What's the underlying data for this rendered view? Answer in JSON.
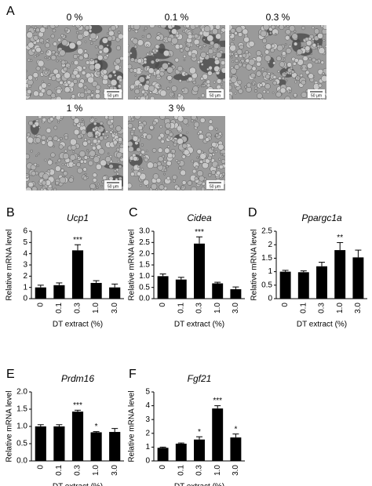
{
  "panel_a": {
    "label": "A",
    "images": [
      {
        "label": "0 %",
        "scale": "50 μm"
      },
      {
        "label": "0.1 %",
        "scale": "50 μm"
      },
      {
        "label": "0.3 %",
        "scale": "50 μm"
      },
      {
        "label": "1 %",
        "scale": "50 μm"
      },
      {
        "label": "3 %",
        "scale": "50 μm"
      }
    ]
  },
  "chart_data": [
    {
      "type": "bar",
      "panel": "B",
      "title": "Ucp1",
      "y_label": "Relative mRNA level",
      "x_label": "DT extract (%)",
      "categories": [
        "0",
        "0.1",
        "0.3",
        "1.0",
        "3.0"
      ],
      "values": [
        1.0,
        1.2,
        4.3,
        1.4,
        1.0
      ],
      "errors": [
        0.2,
        0.2,
        0.5,
        0.2,
        0.3
      ],
      "annotations": [
        null,
        null,
        "***",
        null,
        null
      ],
      "color": "#000000",
      "ylim": [
        0,
        6
      ],
      "yticks": [
        0,
        1,
        2,
        3,
        4,
        5,
        6
      ]
    },
    {
      "type": "bar",
      "panel": "C",
      "title": "Cidea",
      "y_label": "Relative mRNA level",
      "x_label": "DT extract (%)",
      "categories": [
        "0",
        "0.1",
        "0.3",
        "1.0",
        "3.0"
      ],
      "values": [
        1.0,
        0.85,
        2.45,
        0.68,
        0.42
      ],
      "errors": [
        0.1,
        0.1,
        0.3,
        0.05,
        0.1
      ],
      "annotations": [
        null,
        null,
        "***",
        null,
        null
      ],
      "color": "#000000",
      "ylim": [
        0,
        3
      ],
      "yticks": [
        {
          "value": 0,
          "label": "0.0"
        },
        0.5,
        {
          "value": 1,
          "label": "1.0"
        },
        1.5,
        {
          "value": 2,
          "label": "2.0"
        },
        2.5,
        {
          "value": 3,
          "label": "3.0"
        }
      ]
    },
    {
      "type": "bar",
      "panel": "D",
      "title": "Ppargc1a",
      "y_label": "Relative mRNA level",
      "x_label": "DT extract (%)",
      "categories": [
        "0",
        "0.1",
        "0.3",
        "1.0",
        "3.0"
      ],
      "values": [
        1.0,
        0.98,
        1.2,
        1.8,
        1.53
      ],
      "errors": [
        0.05,
        0.05,
        0.15,
        0.28,
        0.27
      ],
      "annotations": [
        null,
        null,
        null,
        "**",
        null
      ],
      "color": "#000000",
      "ylim": [
        0,
        2.5
      ],
      "yticks": [
        0,
        0.5,
        1,
        1.5,
        2,
        2.5
      ]
    },
    {
      "type": "bar",
      "panel": "E",
      "title": "Prdm16",
      "y_label": "Relative mRNA level",
      "x_label": "DT extract (%)",
      "categories": [
        "0",
        "0.1",
        "0.3",
        "1.0",
        "3.0"
      ],
      "values": [
        1.0,
        1.0,
        1.43,
        0.83,
        0.84
      ],
      "errors": [
        0.05,
        0.05,
        0.04,
        0.02,
        0.1
      ],
      "annotations": [
        null,
        null,
        "***",
        "*",
        null
      ],
      "color": "#000000",
      "ylim": [
        0,
        2
      ],
      "yticks": [
        {
          "value": 0,
          "label": "0.0"
        },
        0.5,
        {
          "value": 1,
          "label": "1.0"
        },
        1.5,
        {
          "value": 2,
          "label": "2.0"
        }
      ]
    },
    {
      "type": "bar",
      "panel": "F",
      "title": "Fgf21",
      "y_label": "Relative mRNA level",
      "x_label": "DT extract (%)",
      "categories": [
        "0",
        "0.1",
        "0.3",
        "1.0",
        "3.0"
      ],
      "values": [
        0.95,
        1.25,
        1.55,
        3.8,
        1.7
      ],
      "errors": [
        0.05,
        0.05,
        0.2,
        0.2,
        0.25
      ],
      "annotations": [
        null,
        null,
        "*",
        "***",
        "*"
      ],
      "color": "#000000",
      "ylim": [
        0,
        5
      ],
      "yticks": [
        0,
        1,
        2,
        3,
        4,
        5
      ]
    }
  ]
}
